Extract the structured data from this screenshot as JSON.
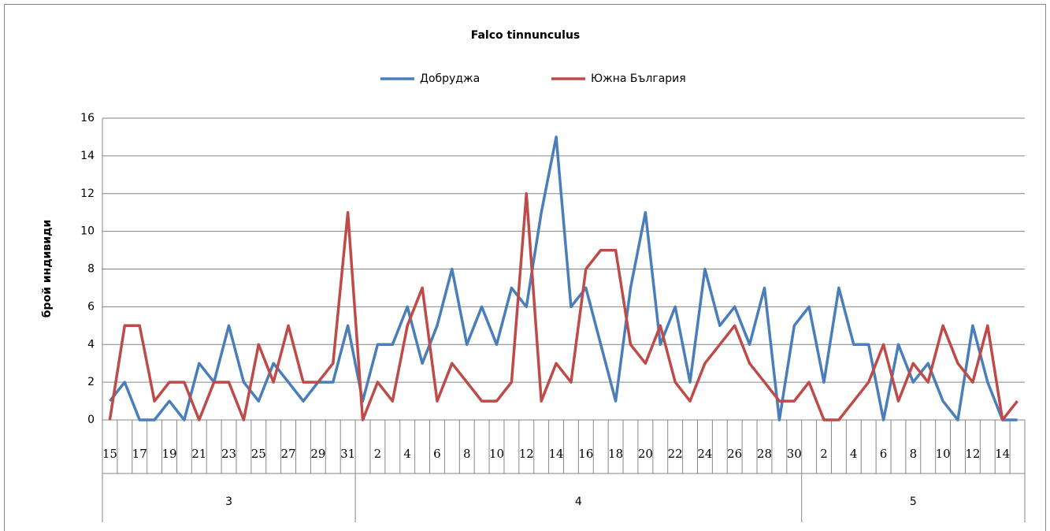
{
  "chart_data": {
    "type": "line",
    "title": "Falco tinnunculus",
    "y_label": "брой индивиди",
    "categories": [
      "15",
      null,
      "17",
      null,
      "19",
      null,
      "21",
      null,
      "23",
      null,
      "25",
      null,
      "27",
      null,
      "29",
      null,
      "31",
      null,
      "2",
      null,
      "4",
      null,
      "6",
      null,
      "8",
      null,
      "10",
      null,
      "12",
      null,
      "14",
      null,
      "16",
      null,
      "18",
      null,
      "20",
      null,
      "22",
      null,
      "24",
      null,
      "26",
      null,
      "28",
      null,
      "30",
      null,
      "2",
      null,
      "4",
      null,
      "6",
      null,
      "8",
      null,
      "10",
      null,
      "12",
      null,
      "14",
      null
    ],
    "groups": [
      {
        "label": "3",
        "count": 17
      },
      {
        "label": "4",
        "count": 30
      },
      {
        "label": "5",
        "count": 15
      }
    ],
    "series": [
      {
        "name": "Добруджа",
        "color": "#4a7ebb",
        "values": [
          1,
          2,
          0,
          0,
          1,
          0,
          3,
          2,
          5,
          2,
          1,
          3,
          2,
          1,
          2,
          2,
          5,
          1,
          4,
          4,
          6,
          3,
          5,
          8,
          4,
          6,
          4,
          7,
          6,
          11,
          15,
          6,
          7,
          4,
          1,
          7,
          11,
          4,
          6,
          2,
          8,
          5,
          6,
          4,
          7,
          0,
          5,
          6,
          2,
          7,
          4,
          4,
          0,
          4,
          2,
          3,
          1,
          0,
          5,
          2,
          0,
          0
        ]
      },
      {
        "name": "Южна България",
        "color": "#be4b48",
        "values": [
          0,
          5,
          5,
          1,
          2,
          2,
          0,
          2,
          2,
          0,
          4,
          2,
          5,
          2,
          2,
          3,
          11,
          0,
          2,
          1,
          5,
          7,
          1,
          3,
          2,
          1,
          1,
          2,
          12,
          1,
          3,
          2,
          8,
          9,
          9,
          4,
          3,
          5,
          2,
          1,
          3,
          4,
          5,
          3,
          2,
          1,
          1,
          2,
          0,
          0,
          1,
          2,
          4,
          1,
          3,
          2,
          5,
          3,
          2,
          5,
          0,
          1
        ]
      }
    ],
    "ylim": [
      0,
      16
    ],
    "yticks": [
      0,
      2,
      4,
      6,
      8,
      10,
      12,
      14,
      16
    ],
    "grid": true,
    "legend": "top"
  }
}
